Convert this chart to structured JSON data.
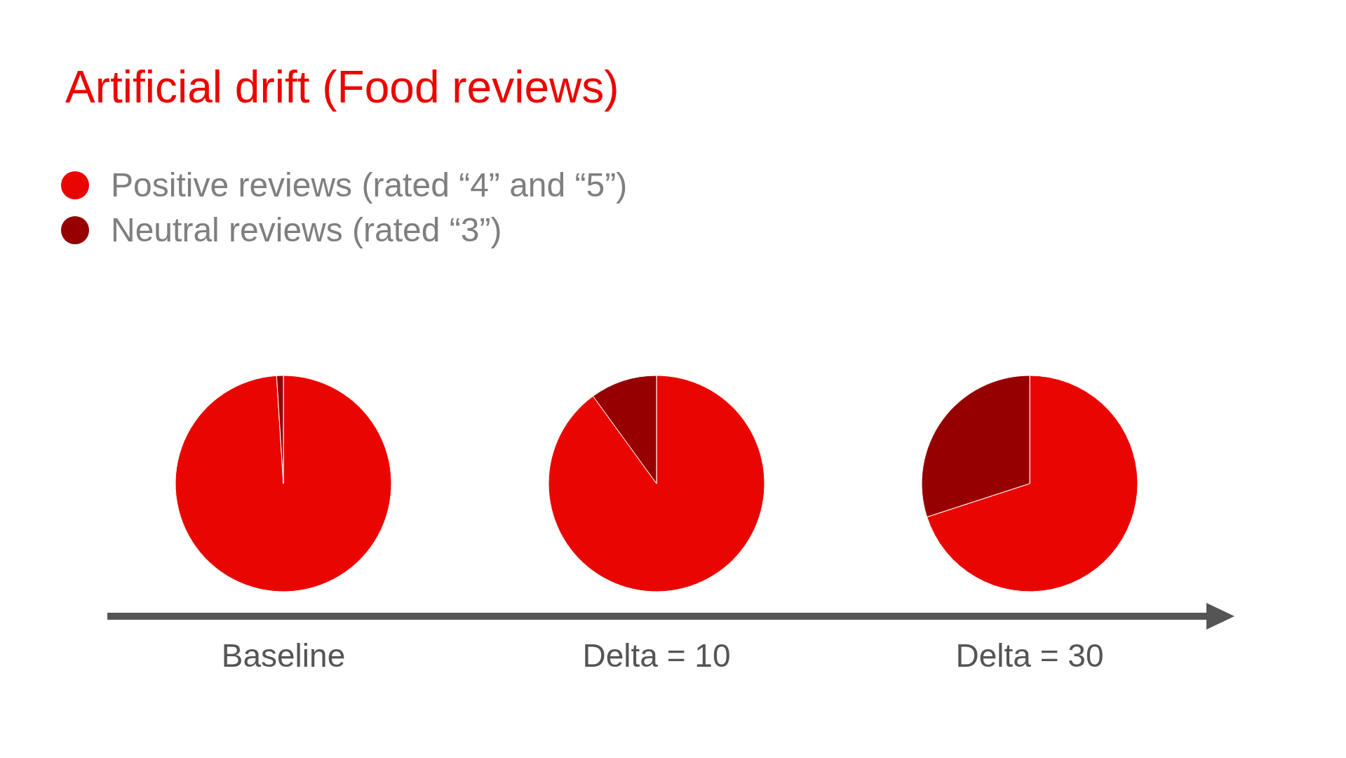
{
  "chart_data": [
    {
      "type": "pie",
      "title": "Artificial drift (Food reviews)",
      "xlabel": "Baseline",
      "categories": [
        "Positive reviews (rated “4” and “5”)",
        "Neutral reviews (rated “3”)"
      ],
      "values": [
        99,
        1
      ],
      "colors": [
        "#ea0600",
        "#960000"
      ],
      "legend": "top"
    },
    {
      "type": "pie",
      "xlabel": "Delta = 10",
      "categories": [
        null,
        null
      ],
      "values": [
        90,
        10
      ],
      "colors": [
        "#ea0600",
        "#960000"
      ]
    },
    {
      "type": "pie",
      "xlabel": "Delta = 30",
      "categories": [
        null,
        null
      ],
      "values": [
        70,
        30
      ],
      "colors": [
        "#ea0600",
        "#960000"
      ]
    }
  ]
}
